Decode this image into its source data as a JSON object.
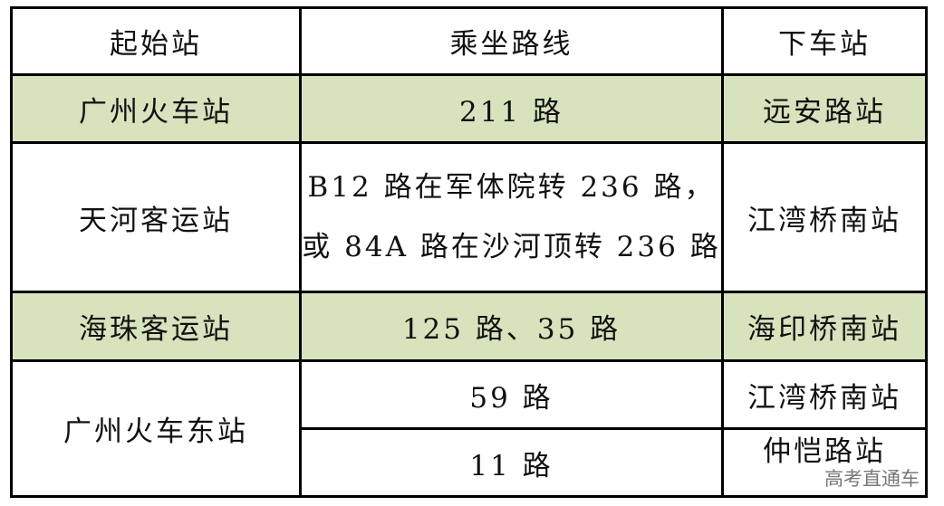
{
  "headers": [
    "起始站",
    "乘坐路线",
    "下车站"
  ],
  "rows": [
    {
      "start": "广州火车站",
      "route": "211 路",
      "stop": "远安路站"
    },
    {
      "start": "天河客运站",
      "route_lines": [
        "B12 路在军体院转 236 路，",
        "或 84A 路在沙河顶转 236 路"
      ],
      "stop": "江湾桥南站"
    },
    {
      "start": "海珠客运站",
      "route": "125 路、35 路",
      "stop": "海印桥南站"
    },
    {
      "start": "广州火车东站",
      "routes": [
        {
          "route": "59 路",
          "stop": "江湾桥南站"
        },
        {
          "route": "11 路",
          "stop": "仲恺路站"
        }
      ]
    }
  ],
  "watermark": "高考直通车",
  "colors": {
    "highlight_row": "#d6e3bc"
  }
}
